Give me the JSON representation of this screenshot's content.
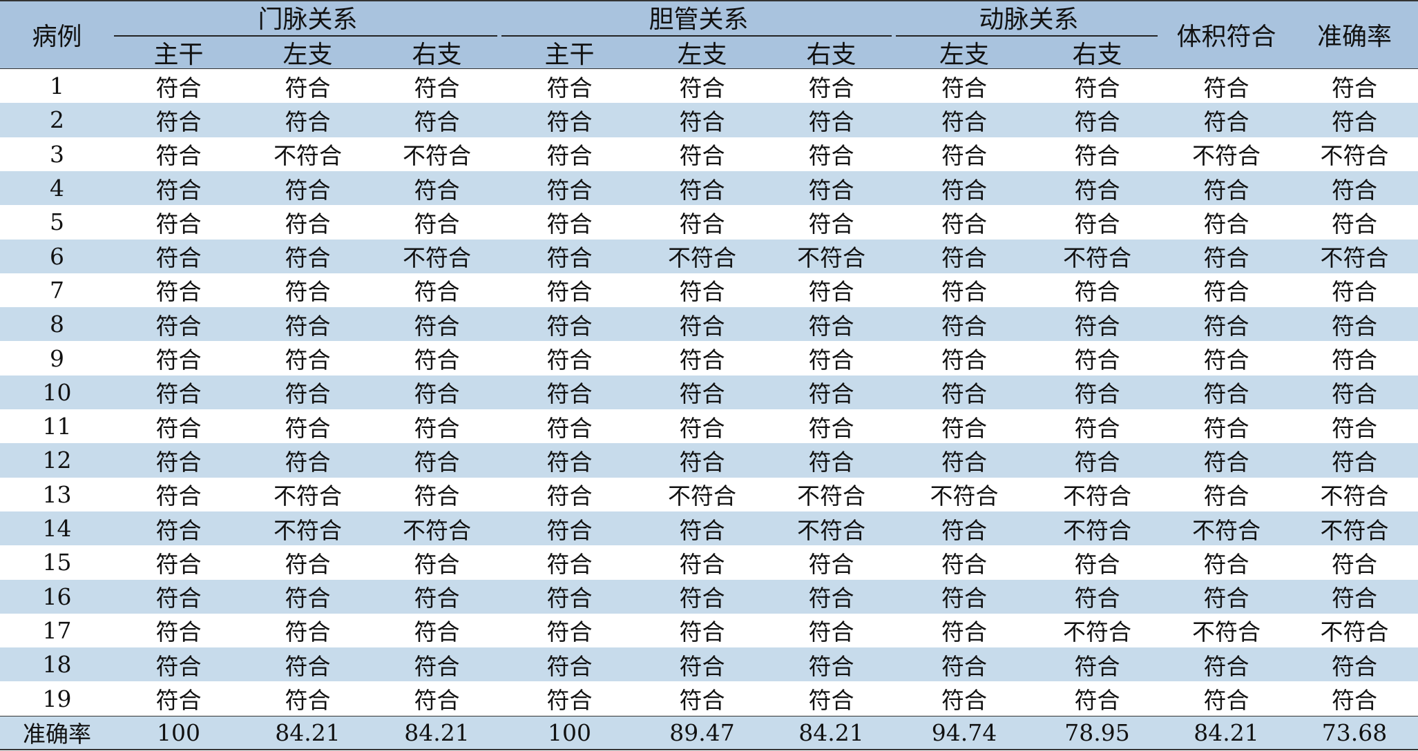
{
  "colors": {
    "header_bg": "#a9c3de",
    "stripe_bg": "#c7dbeb",
    "white_bg": "#ffffff"
  },
  "header": {
    "case": "病例",
    "groups": [
      {
        "label": "门脉关系",
        "subs": [
          "主干",
          "左支",
          "右支"
        ]
      },
      {
        "label": "胆管关系",
        "subs": [
          "主干",
          "左支",
          "右支"
        ]
      },
      {
        "label": "动脉关系",
        "subs": [
          "左支",
          "右支"
        ]
      }
    ],
    "volume": "体积符合",
    "accuracy": "准确率"
  },
  "rows": [
    {
      "case": "1",
      "cells": [
        "符合",
        "符合",
        "符合",
        "符合",
        "符合",
        "符合",
        "符合",
        "符合",
        "符合",
        "符合"
      ]
    },
    {
      "case": "2",
      "cells": [
        "符合",
        "符合",
        "符合",
        "符合",
        "符合",
        "符合",
        "符合",
        "符合",
        "符合",
        "符合"
      ]
    },
    {
      "case": "3",
      "cells": [
        "符合",
        "不符合",
        "不符合",
        "符合",
        "符合",
        "符合",
        "符合",
        "符合",
        "不符合",
        "不符合"
      ]
    },
    {
      "case": "4",
      "cells": [
        "符合",
        "符合",
        "符合",
        "符合",
        "符合",
        "符合",
        "符合",
        "符合",
        "符合",
        "符合"
      ]
    },
    {
      "case": "5",
      "cells": [
        "符合",
        "符合",
        "符合",
        "符合",
        "符合",
        "符合",
        "符合",
        "符合",
        "符合",
        "符合"
      ]
    },
    {
      "case": "6",
      "cells": [
        "符合",
        "符合",
        "不符合",
        "符合",
        "不符合",
        "不符合",
        "符合",
        "不符合",
        "符合",
        "不符合"
      ]
    },
    {
      "case": "7",
      "cells": [
        "符合",
        "符合",
        "符合",
        "符合",
        "符合",
        "符合",
        "符合",
        "符合",
        "符合",
        "符合"
      ]
    },
    {
      "case": "8",
      "cells": [
        "符合",
        "符合",
        "符合",
        "符合",
        "符合",
        "符合",
        "符合",
        "符合",
        "符合",
        "符合"
      ]
    },
    {
      "case": "9",
      "cells": [
        "符合",
        "符合",
        "符合",
        "符合",
        "符合",
        "符合",
        "符合",
        "符合",
        "符合",
        "符合"
      ]
    },
    {
      "case": "10",
      "cells": [
        "符合",
        "符合",
        "符合",
        "符合",
        "符合",
        "符合",
        "符合",
        "符合",
        "符合",
        "符合"
      ]
    },
    {
      "case": "11",
      "cells": [
        "符合",
        "符合",
        "符合",
        "符合",
        "符合",
        "符合",
        "符合",
        "符合",
        "符合",
        "符合"
      ]
    },
    {
      "case": "12",
      "cells": [
        "符合",
        "符合",
        "符合",
        "符合",
        "符合",
        "符合",
        "符合",
        "符合",
        "符合",
        "符合"
      ]
    },
    {
      "case": "13",
      "cells": [
        "符合",
        "不符合",
        "符合",
        "符合",
        "不符合",
        "不符合",
        "不符合",
        "不符合",
        "符合",
        "不符合"
      ]
    },
    {
      "case": "14",
      "cells": [
        "符合",
        "不符合",
        "不符合",
        "符合",
        "符合",
        "不符合",
        "符合",
        "不符合",
        "不符合",
        "不符合"
      ]
    },
    {
      "case": "15",
      "cells": [
        "符合",
        "符合",
        "符合",
        "符合",
        "符合",
        "符合",
        "符合",
        "符合",
        "符合",
        "符合"
      ]
    },
    {
      "case": "16",
      "cells": [
        "符合",
        "符合",
        "符合",
        "符合",
        "符合",
        "符合",
        "符合",
        "符合",
        "符合",
        "符合"
      ]
    },
    {
      "case": "17",
      "cells": [
        "符合",
        "符合",
        "符合",
        "符合",
        "符合",
        "符合",
        "符合",
        "不符合",
        "不符合",
        "不符合"
      ]
    },
    {
      "case": "18",
      "cells": [
        "符合",
        "符合",
        "符合",
        "符合",
        "符合",
        "符合",
        "符合",
        "符合",
        "符合",
        "符合"
      ]
    },
    {
      "case": "19",
      "cells": [
        "符合",
        "符合",
        "符合",
        "符合",
        "符合",
        "符合",
        "符合",
        "符合",
        "符合",
        "符合"
      ]
    }
  ],
  "summary": {
    "label": "准确率",
    "cells": [
      "100",
      "84.21",
      "84.21",
      "100",
      "89.47",
      "84.21",
      "94.74",
      "78.95",
      "84.21",
      "73.68"
    ]
  }
}
